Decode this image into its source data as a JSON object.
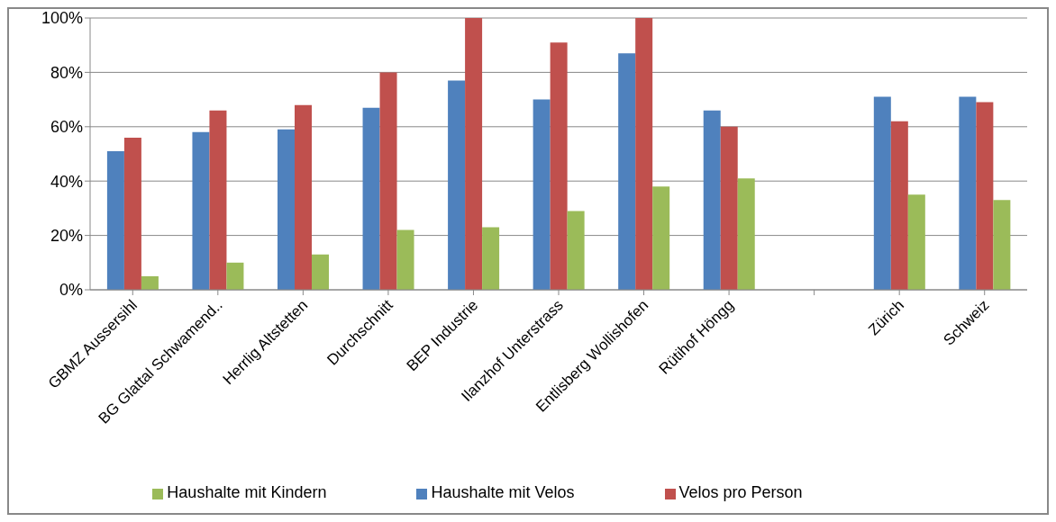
{
  "chart_data": {
    "type": "bar",
    "categories": [
      "GBMZ Aussersihl",
      "BG Glattal Schwamend..",
      "Herrlig Altstetten",
      "Durchschnitt",
      "BEP Industrie",
      "Ilanzhof Unterstrass",
      "Entlisberg Wollishofen",
      "Rütihof Höngg",
      null,
      "Zürich",
      "Schweiz"
    ],
    "series": [
      {
        "name": "Haushalte mit Velos",
        "color": "#4f81bd",
        "values": [
          51,
          58,
          59,
          67,
          77,
          70,
          87,
          66,
          null,
          71,
          71
        ]
      },
      {
        "name": "Velos pro Person",
        "color": "#c0504d",
        "values": [
          56,
          66,
          68,
          80,
          100,
          91,
          100,
          60,
          null,
          62,
          69
        ]
      },
      {
        "name": "Haushalte mit Kindern",
        "color": "#9bbb59",
        "values": [
          5,
          10,
          13,
          22,
          23,
          29,
          38,
          41,
          null,
          35,
          33
        ]
      }
    ],
    "ylim": [
      0,
      100
    ],
    "yticks": [
      {
        "value": 0,
        "label": "0%"
      },
      {
        "value": 20,
        "label": "20%"
      },
      {
        "value": 40,
        "label": "40%"
      },
      {
        "value": 60,
        "label": "60%"
      },
      {
        "value": 80,
        "label": "80%"
      },
      {
        "value": 100,
        "label": "100%"
      }
    ],
    "grid": "y",
    "legend": "bottom"
  }
}
